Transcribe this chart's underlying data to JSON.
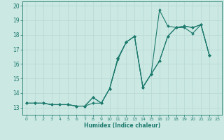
{
  "xlabel": "Humidex (Indice chaleur)",
  "bg_color": "#cbe8e3",
  "grid_color": "#b8d8d2",
  "line_color": "#1e7b6e",
  "xlim": [
    -0.5,
    23.5
  ],
  "ylim": [
    12.5,
    20.3
  ],
  "yticks": [
    13,
    14,
    15,
    16,
    17,
    18,
    19,
    20
  ],
  "xticks": [
    0,
    1,
    2,
    3,
    4,
    5,
    6,
    7,
    8,
    9,
    10,
    11,
    12,
    13,
    14,
    15,
    16,
    17,
    18,
    19,
    20,
    21,
    22,
    23
  ],
  "s1": [
    13.3,
    13.3,
    13.3,
    13.2,
    13.2,
    13.2,
    13.1,
    13.1,
    13.3,
    13.3,
    14.3,
    16.3,
    17.5,
    17.9,
    14.4,
    15.3,
    16.2,
    17.9,
    18.5,
    18.5,
    18.1,
    18.7,
    16.6,
    null
  ],
  "s2": [
    13.3,
    13.3,
    13.3,
    13.2,
    13.2,
    13.2,
    13.1,
    13.1,
    13.7,
    13.3,
    14.3,
    16.4,
    17.5,
    17.9,
    14.4,
    15.3,
    16.2,
    17.9,
    18.5,
    18.6,
    18.5,
    18.7,
    16.6,
    null
  ],
  "s3": [
    13.3,
    13.3,
    13.3,
    13.2,
    13.2,
    13.2,
    13.1,
    13.1,
    13.7,
    13.3,
    14.3,
    16.4,
    17.5,
    17.9,
    14.4,
    15.3,
    19.7,
    18.6,
    18.5,
    18.6,
    18.5,
    18.7,
    16.6,
    null
  ]
}
